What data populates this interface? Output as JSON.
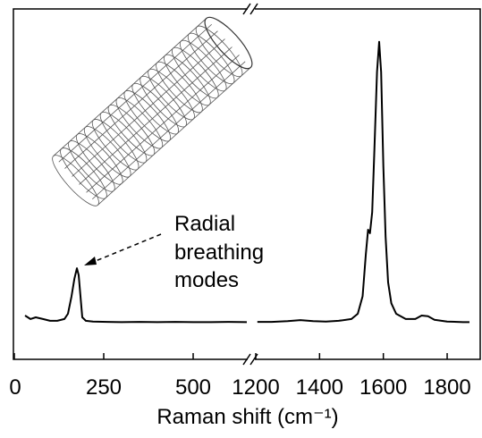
{
  "chart_data": {
    "type": "line",
    "xlabel": "Raman shift (cm⁻¹)",
    "annotation": [
      "Radial",
      "breathing",
      "modes"
    ],
    "xlim": [
      [
        0,
        650
      ],
      [
        1200,
        1870
      ]
    ],
    "xticks": [
      [
        0,
        250,
        500
      ],
      [
        1200,
        1400,
        1600,
        1800
      ]
    ],
    "ylim": [
      0,
      100
    ],
    "series": [
      {
        "color": "#000000",
        "x": [
          30,
          45,
          60,
          80,
          100,
          120,
          140,
          150,
          160,
          168,
          175,
          180,
          185,
          190,
          200,
          220,
          260,
          300,
          350,
          400,
          450,
          500,
          550,
          600,
          650
        ],
        "values": [
          12.5,
          11.5,
          12,
          11.5,
          11,
          11,
          11.5,
          13,
          18,
          23,
          26,
          24,
          18,
          12,
          11,
          10.8,
          10.7,
          10.6,
          10.7,
          10.6,
          10.7,
          10.6,
          10.6,
          10.7,
          10.6
        ]
      },
      {
        "color": "#000000",
        "x": [
          1205,
          1250,
          1300,
          1340,
          1380,
          1420,
          1460,
          1500,
          1520,
          1535,
          1545,
          1552,
          1558,
          1565,
          1572,
          1580,
          1587,
          1593,
          1600,
          1607,
          1615,
          1625,
          1640,
          1670,
          1700,
          1720,
          1740,
          1760,
          1800,
          1850,
          1870
        ],
        "values": [
          10.7,
          10.7,
          10.9,
          11.2,
          10.9,
          10.8,
          11,
          11.5,
          13,
          18,
          30,
          37,
          36,
          42,
          60,
          82,
          90.6,
          82,
          55,
          35,
          22,
          16,
          13,
          11.5,
          11.5,
          12.5,
          12.3,
          11.3,
          10.8,
          10.6,
          10.6
        ]
      }
    ]
  }
}
